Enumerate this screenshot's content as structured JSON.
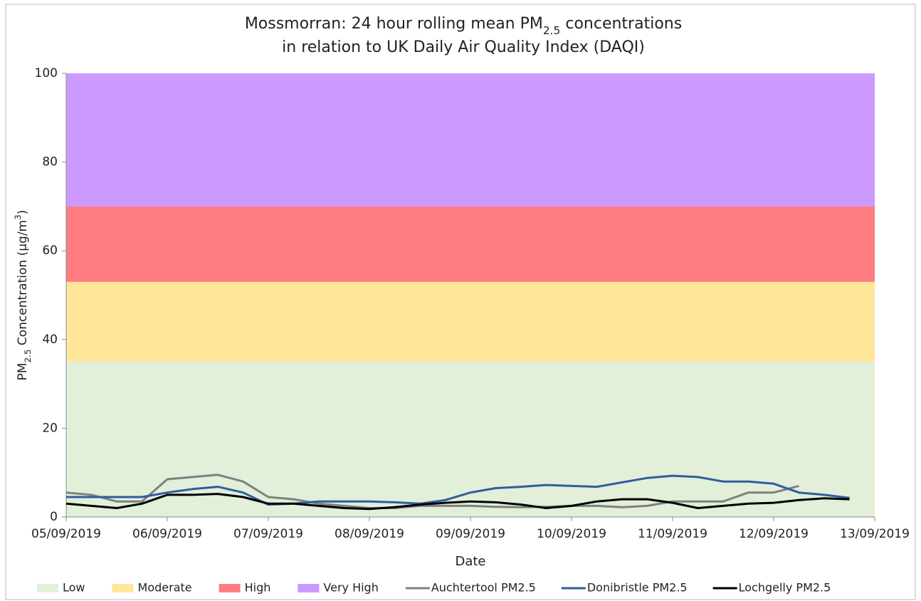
{
  "chart_data": {
    "type": "line",
    "title": [
      [
        {
          "text": "Mossmorran: 24 hour rolling mean PM"
        },
        {
          "text": "2.5",
          "shift": "sub"
        },
        {
          "text": " concentrations"
        }
      ],
      [
        {
          "text": "in relation to UK Daily Air Quality Index (DAQI)"
        }
      ]
    ],
    "x_label": "Date",
    "y_label": [
      {
        "text": "PM"
      },
      {
        "text": "2.5",
        "shift": "sub"
      },
      {
        "text": " Concentration (µg/m"
      },
      {
        "text": "3",
        "shift": "super"
      },
      {
        "text": ")"
      }
    ],
    "ylim": [
      0,
      100
    ],
    "yticks": [
      0,
      20,
      40,
      60,
      80,
      100
    ],
    "xlim": [
      "2019-09-05 00:00",
      "2019-09-13 00:00"
    ],
    "xticks": [
      {
        "value": "2019-09-05 00:00",
        "label": "05/09/2019"
      },
      {
        "value": "2019-09-06 00:00",
        "label": "06/09/2019"
      },
      {
        "value": "2019-09-07 00:00",
        "label": "07/09/2019"
      },
      {
        "value": "2019-09-08 00:00",
        "label": "08/09/2019"
      },
      {
        "value": "2019-09-09 00:00",
        "label": "09/09/2019"
      },
      {
        "value": "2019-09-10 00:00",
        "label": "10/09/2019"
      },
      {
        "value": "2019-09-11 00:00",
        "label": "11/09/2019"
      },
      {
        "value": "2019-09-12 00:00",
        "label": "12/09/2019"
      },
      {
        "value": "2019-09-13 00:00",
        "label": "13/09/2019"
      }
    ],
    "bands": [
      {
        "name": "Low",
        "color": "#e2efd9",
        "from": 0,
        "to": 35
      },
      {
        "name": "Moderate",
        "color": "#ffe699",
        "from": 35,
        "to": 53
      },
      {
        "name": "High",
        "color": "#ff7c80",
        "from": 53,
        "to": 70
      },
      {
        "name": "Very High",
        "color": "#cc99ff",
        "from": 70,
        "to": 100
      }
    ],
    "x": [
      "2019-09-05 00:00",
      "2019-09-05 06:00",
      "2019-09-05 12:00",
      "2019-09-05 18:00",
      "2019-09-06 00:00",
      "2019-09-06 06:00",
      "2019-09-06 12:00",
      "2019-09-06 18:00",
      "2019-09-07 00:00",
      "2019-09-07 06:00",
      "2019-09-07 12:00",
      "2019-09-07 18:00",
      "2019-09-08 00:00",
      "2019-09-08 06:00",
      "2019-09-08 12:00",
      "2019-09-08 18:00",
      "2019-09-09 00:00",
      "2019-09-09 06:00",
      "2019-09-09 12:00",
      "2019-09-09 18:00",
      "2019-09-10 00:00",
      "2019-09-10 06:00",
      "2019-09-10 12:00",
      "2019-09-10 18:00",
      "2019-09-11 00:00",
      "2019-09-11 06:00",
      "2019-09-11 12:00",
      "2019-09-11 18:00",
      "2019-09-12 00:00",
      "2019-09-12 06:00",
      "2019-09-12 12:00",
      "2019-09-12 18:00"
    ],
    "series": [
      {
        "name": "Auchtertool PM2.5",
        "color": "#808080",
        "values": [
          5.5,
          5,
          3.5,
          3.5,
          8.5,
          9,
          9.5,
          8,
          4.5,
          4,
          3,
          2.5,
          2,
          2,
          2.5,
          2.5,
          2.5,
          2.3,
          2.2,
          2.3,
          2.5,
          2.5,
          2.2,
          2.5,
          3.5,
          3.5,
          3.5,
          5.5,
          5.5,
          7,
          null,
          null
        ]
      },
      {
        "name": "Donibristle PM2.5",
        "color": "#2e5e9e",
        "values": [
          4.5,
          4.5,
          4.5,
          4.5,
          5.5,
          6.3,
          6.8,
          5.5,
          2.8,
          3,
          3.5,
          3.5,
          3.5,
          3.3,
          3,
          3.8,
          5.5,
          6.5,
          6.8,
          7.2,
          7,
          6.8,
          7.8,
          8.8,
          9.3,
          9,
          8,
          8,
          7.5,
          5.5,
          5,
          4.3
        ]
      },
      {
        "name": "Lochgelly PM2.5",
        "color": "#000000",
        "values": [
          3,
          2.5,
          2,
          3,
          5,
          5,
          5.2,
          4.5,
          3,
          3,
          2.5,
          2,
          1.8,
          2.2,
          2.8,
          3.2,
          3.5,
          3.3,
          2.8,
          2,
          2.5,
          3.5,
          4,
          4,
          3.2,
          2,
          2.5,
          3,
          3.2,
          3.8,
          4.2,
          4
        ]
      }
    ]
  }
}
